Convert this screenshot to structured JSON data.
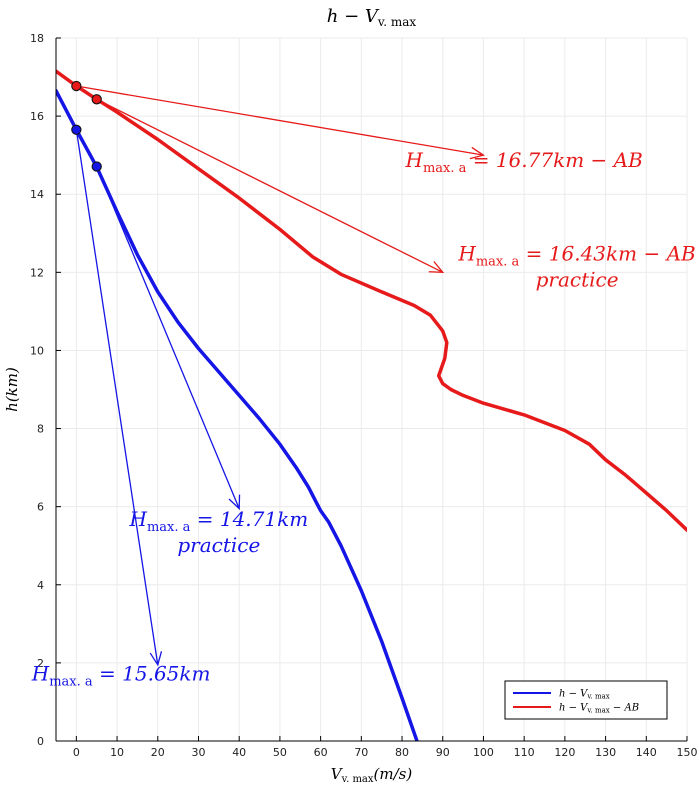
{
  "chart_data": {
    "type": "line",
    "title": {
      "main": "h − V",
      "sub": "v. max"
    },
    "xlabel": {
      "main": "V",
      "sub": "v. max",
      "tail": "(m/s)"
    },
    "ylabel": "h(km)",
    "xlim": [
      -5,
      150
    ],
    "ylim": [
      0,
      18
    ],
    "xticks": [
      0,
      10,
      20,
      30,
      40,
      50,
      60,
      70,
      80,
      90,
      100,
      110,
      120,
      130,
      140,
      150
    ],
    "yticks": [
      0,
      2,
      4,
      6,
      8,
      10,
      12,
      14,
      16,
      18
    ],
    "grid": true,
    "legend_position": "bottom-right",
    "series": [
      {
        "name": "h − V v. max",
        "name_main": "h − V",
        "name_sub": "v. max",
        "name_tail": "",
        "color": "#1515e6",
        "x": [
          -5,
          0,
          5,
          10,
          15,
          20,
          25,
          30,
          35,
          40,
          45,
          50,
          54,
          57,
          59,
          60,
          62,
          65,
          70,
          75,
          80,
          85
        ],
        "y": [
          16.65,
          15.65,
          14.7,
          13.55,
          12.45,
          11.5,
          10.72,
          10.05,
          9.45,
          8.85,
          8.25,
          7.6,
          7.0,
          6.5,
          6.1,
          5.9,
          5.6,
          5.0,
          3.85,
          2.55,
          1.1,
          -0.4
        ]
      },
      {
        "name": "h − V v. max − AB",
        "name_main": "h − V",
        "name_sub": "v. max",
        "name_tail": " − AB",
        "color": "#e61a1a",
        "x": [
          -5,
          0,
          5,
          10,
          20,
          30,
          40,
          50,
          58,
          65,
          75,
          83,
          87,
          90,
          91,
          90.5,
          89.5,
          89,
          90,
          92,
          95,
          100,
          110,
          120,
          126,
          130,
          135,
          140,
          145,
          150
        ],
        "y": [
          17.15,
          16.77,
          16.43,
          16.1,
          15.4,
          14.65,
          13.9,
          13.1,
          12.4,
          11.95,
          11.5,
          11.15,
          10.9,
          10.5,
          10.2,
          9.8,
          9.5,
          9.35,
          9.15,
          9.0,
          8.85,
          8.65,
          8.35,
          7.95,
          7.6,
          7.2,
          6.8,
          6.35,
          5.9,
          5.4
        ]
      }
    ],
    "points": [
      {
        "x": 0,
        "y": 16.77,
        "color": "#e61a1a"
      },
      {
        "x": 5,
        "y": 16.43,
        "color": "#e61a1a"
      },
      {
        "x": 0,
        "y": 15.65,
        "color": "#1515e6"
      },
      {
        "x": 5,
        "y": 14.71,
        "color": "#1515e6"
      }
    ],
    "annotations": [
      {
        "from": [
          0,
          16.77
        ],
        "to": [
          100,
          15.0
        ],
        "color": "#e61a1a",
        "label_x": 110,
        "label_y": 14.7,
        "align": "middle",
        "main": "H",
        "sub": "max. a",
        "value": " = 16.77km − AB",
        "second": ""
      },
      {
        "from": [
          5,
          16.43
        ],
        "to": [
          90,
          12.0
        ],
        "color": "#e61a1a",
        "label_x": 123,
        "label_y": 12.3,
        "align": "middle",
        "main": "H",
        "sub": "max. a",
        "value": " = 16.43km − AB",
        "second": "practice"
      },
      {
        "from": [
          5,
          14.71
        ],
        "to": [
          40,
          5.95
        ],
        "color": "#1515e6",
        "label_x": 35,
        "label_y": 5.5,
        "align": "middle",
        "main": "H",
        "sub": "max. a",
        "value": " = 14.71km",
        "second": "practice"
      },
      {
        "from": [
          0,
          15.65
        ],
        "to": [
          20,
          1.95
        ],
        "color": "#1515e6",
        "label_x": 11,
        "label_y": 1.55,
        "align": "middle",
        "main": "H",
        "sub": "max. a",
        "value": " = 15.65km",
        "second": ""
      }
    ]
  }
}
